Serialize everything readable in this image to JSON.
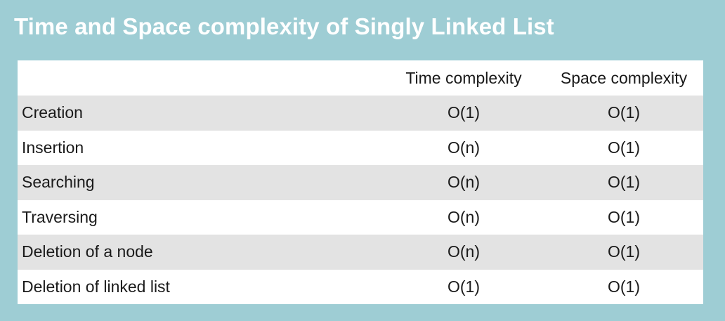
{
  "title": "Time and Space complexity of Singly Linked List",
  "table": {
    "headers": [
      "",
      "Time complexity",
      "Space complexity"
    ],
    "rows": [
      {
        "operation": "Creation",
        "time": "O(1)",
        "space": "O(1)"
      },
      {
        "operation": "Insertion",
        "time": "O(n)",
        "space": "O(1)"
      },
      {
        "operation": "Searching",
        "time": "O(n)",
        "space": "O(1)"
      },
      {
        "operation": "Traversing",
        "time": "O(n)",
        "space": "O(1)"
      },
      {
        "operation": "Deletion of a node",
        "time": "O(n)",
        "space": "O(1)"
      },
      {
        "operation": "Deletion of linked list",
        "time": "O(1)",
        "space": "O(1)"
      }
    ]
  },
  "colors": {
    "background": "#9ecdd4",
    "title_text": "#ffffff",
    "row_shaded": "#e3e3e3",
    "row_plain": "#ffffff"
  }
}
